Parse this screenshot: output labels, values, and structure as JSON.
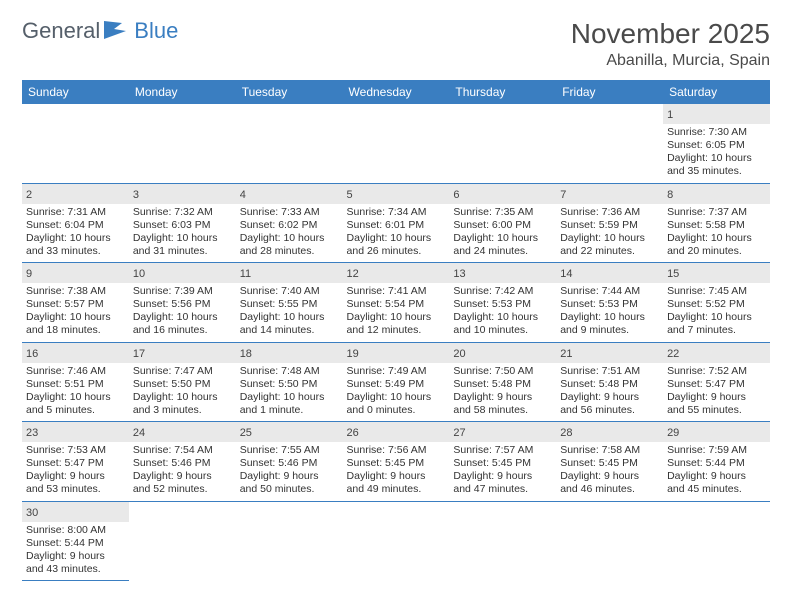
{
  "brand": {
    "part1": "General",
    "part2": "Blue"
  },
  "title": "November 2025",
  "location": "Abanilla, Murcia, Spain",
  "colors": {
    "header_bg": "#3a7ec1",
    "header_text": "#ffffff",
    "shaded_cell": "#e9e9e9",
    "cell_border": "#3a7ec1",
    "text": "#333333",
    "title_text": "#4a4a4a"
  },
  "weekdays": [
    "Sunday",
    "Monday",
    "Tuesday",
    "Wednesday",
    "Thursday",
    "Friday",
    "Saturday"
  ],
  "weeks": [
    [
      null,
      null,
      null,
      null,
      null,
      null,
      {
        "n": "1",
        "sr": "7:30 AM",
        "ss": "6:05 PM",
        "dl": "10 hours and 35 minutes."
      }
    ],
    [
      {
        "n": "2",
        "sr": "7:31 AM",
        "ss": "6:04 PM",
        "dl": "10 hours and 33 minutes."
      },
      {
        "n": "3",
        "sr": "7:32 AM",
        "ss": "6:03 PM",
        "dl": "10 hours and 31 minutes."
      },
      {
        "n": "4",
        "sr": "7:33 AM",
        "ss": "6:02 PM",
        "dl": "10 hours and 28 minutes."
      },
      {
        "n": "5",
        "sr": "7:34 AM",
        "ss": "6:01 PM",
        "dl": "10 hours and 26 minutes."
      },
      {
        "n": "6",
        "sr": "7:35 AM",
        "ss": "6:00 PM",
        "dl": "10 hours and 24 minutes."
      },
      {
        "n": "7",
        "sr": "7:36 AM",
        "ss": "5:59 PM",
        "dl": "10 hours and 22 minutes."
      },
      {
        "n": "8",
        "sr": "7:37 AM",
        "ss": "5:58 PM",
        "dl": "10 hours and 20 minutes."
      }
    ],
    [
      {
        "n": "9",
        "sr": "7:38 AM",
        "ss": "5:57 PM",
        "dl": "10 hours and 18 minutes."
      },
      {
        "n": "10",
        "sr": "7:39 AM",
        "ss": "5:56 PM",
        "dl": "10 hours and 16 minutes."
      },
      {
        "n": "11",
        "sr": "7:40 AM",
        "ss": "5:55 PM",
        "dl": "10 hours and 14 minutes."
      },
      {
        "n": "12",
        "sr": "7:41 AM",
        "ss": "5:54 PM",
        "dl": "10 hours and 12 minutes."
      },
      {
        "n": "13",
        "sr": "7:42 AM",
        "ss": "5:53 PM",
        "dl": "10 hours and 10 minutes."
      },
      {
        "n": "14",
        "sr": "7:44 AM",
        "ss": "5:53 PM",
        "dl": "10 hours and 9 minutes."
      },
      {
        "n": "15",
        "sr": "7:45 AM",
        "ss": "5:52 PM",
        "dl": "10 hours and 7 minutes."
      }
    ],
    [
      {
        "n": "16",
        "sr": "7:46 AM",
        "ss": "5:51 PM",
        "dl": "10 hours and 5 minutes."
      },
      {
        "n": "17",
        "sr": "7:47 AM",
        "ss": "5:50 PM",
        "dl": "10 hours and 3 minutes."
      },
      {
        "n": "18",
        "sr": "7:48 AM",
        "ss": "5:50 PM",
        "dl": "10 hours and 1 minute."
      },
      {
        "n": "19",
        "sr": "7:49 AM",
        "ss": "5:49 PM",
        "dl": "10 hours and 0 minutes."
      },
      {
        "n": "20",
        "sr": "7:50 AM",
        "ss": "5:48 PM",
        "dl": "9 hours and 58 minutes."
      },
      {
        "n": "21",
        "sr": "7:51 AM",
        "ss": "5:48 PM",
        "dl": "9 hours and 56 minutes."
      },
      {
        "n": "22",
        "sr": "7:52 AM",
        "ss": "5:47 PM",
        "dl": "9 hours and 55 minutes."
      }
    ],
    [
      {
        "n": "23",
        "sr": "7:53 AM",
        "ss": "5:47 PM",
        "dl": "9 hours and 53 minutes."
      },
      {
        "n": "24",
        "sr": "7:54 AM",
        "ss": "5:46 PM",
        "dl": "9 hours and 52 minutes."
      },
      {
        "n": "25",
        "sr": "7:55 AM",
        "ss": "5:46 PM",
        "dl": "9 hours and 50 minutes."
      },
      {
        "n": "26",
        "sr": "7:56 AM",
        "ss": "5:45 PM",
        "dl": "9 hours and 49 minutes."
      },
      {
        "n": "27",
        "sr": "7:57 AM",
        "ss": "5:45 PM",
        "dl": "9 hours and 47 minutes."
      },
      {
        "n": "28",
        "sr": "7:58 AM",
        "ss": "5:45 PM",
        "dl": "9 hours and 46 minutes."
      },
      {
        "n": "29",
        "sr": "7:59 AM",
        "ss": "5:44 PM",
        "dl": "9 hours and 45 minutes."
      }
    ],
    [
      {
        "n": "30",
        "sr": "8:00 AM",
        "ss": "5:44 PM",
        "dl": "9 hours and 43 minutes."
      },
      null,
      null,
      null,
      null,
      null,
      null
    ]
  ],
  "labels": {
    "sunrise": "Sunrise:",
    "sunset": "Sunset:",
    "daylight": "Daylight:"
  }
}
